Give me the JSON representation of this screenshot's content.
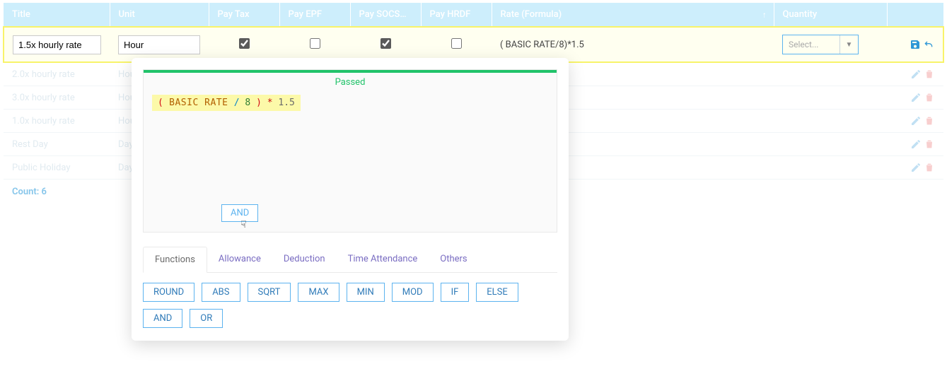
{
  "colors": {
    "header_bg": "#cdeefc",
    "header_text": "#ffffff",
    "edit_row_border": "#f8f36a",
    "accent": "#5cb3ef",
    "status_ok": "#21c36a",
    "formula_bg": "#fcf9a9",
    "count_text": "#85c5ea"
  },
  "columns": {
    "title": "Title",
    "unit": "Unit",
    "tax": "Pay Tax",
    "epf": "Pay EPF",
    "socso": "Pay SOCS…",
    "hrdf": "Pay HRDF",
    "rate": "Rate (Formula)",
    "qty": "Quantity"
  },
  "edit_row": {
    "title_value": "1.5x hourly rate",
    "unit_value": "Hour",
    "pay_tax": true,
    "pay_epf": false,
    "pay_socso": true,
    "pay_hrdf": false,
    "rate_text": "( BASIC RATE/8)*1.5",
    "qty_placeholder": "Select..."
  },
  "rows": [
    {
      "title": "2.0x hourly rate",
      "unit": "Hour"
    },
    {
      "title": "3.0x hourly rate",
      "unit": "Hour"
    },
    {
      "title": "1.0x hourly rate",
      "unit": "Hour"
    },
    {
      "title": "Rest Day",
      "unit": "Day"
    },
    {
      "title": "Public Holiday",
      "unit": "Day"
    }
  ],
  "count_label": "Count: 6",
  "popover": {
    "status": "Passed",
    "formula_tokens": [
      {
        "t": "(",
        "c": "tok-paren"
      },
      {
        "t": " BASIC RATE ",
        "c": "tok-kw"
      },
      {
        "t": "/",
        "c": "tok-op"
      },
      {
        "t": " 8 ",
        "c": "tok-num"
      },
      {
        "t": ")",
        "c": "tok-paren"
      },
      {
        "t": " * ",
        "c": "tok-star"
      },
      {
        "t": "1.5",
        "c": "tok-lit"
      }
    ],
    "hover_token": "AND",
    "tabs": [
      {
        "label": "Functions",
        "active": true
      },
      {
        "label": "Allowance",
        "active": false
      },
      {
        "label": "Deduction",
        "active": false
      },
      {
        "label": "Time Attendance",
        "active": false
      },
      {
        "label": "Others",
        "active": false
      }
    ],
    "functions": [
      "ROUND",
      "ABS",
      "SQRT",
      "MAX",
      "MIN",
      "MOD",
      "IF",
      "ELSE",
      "AND",
      "OR"
    ]
  }
}
